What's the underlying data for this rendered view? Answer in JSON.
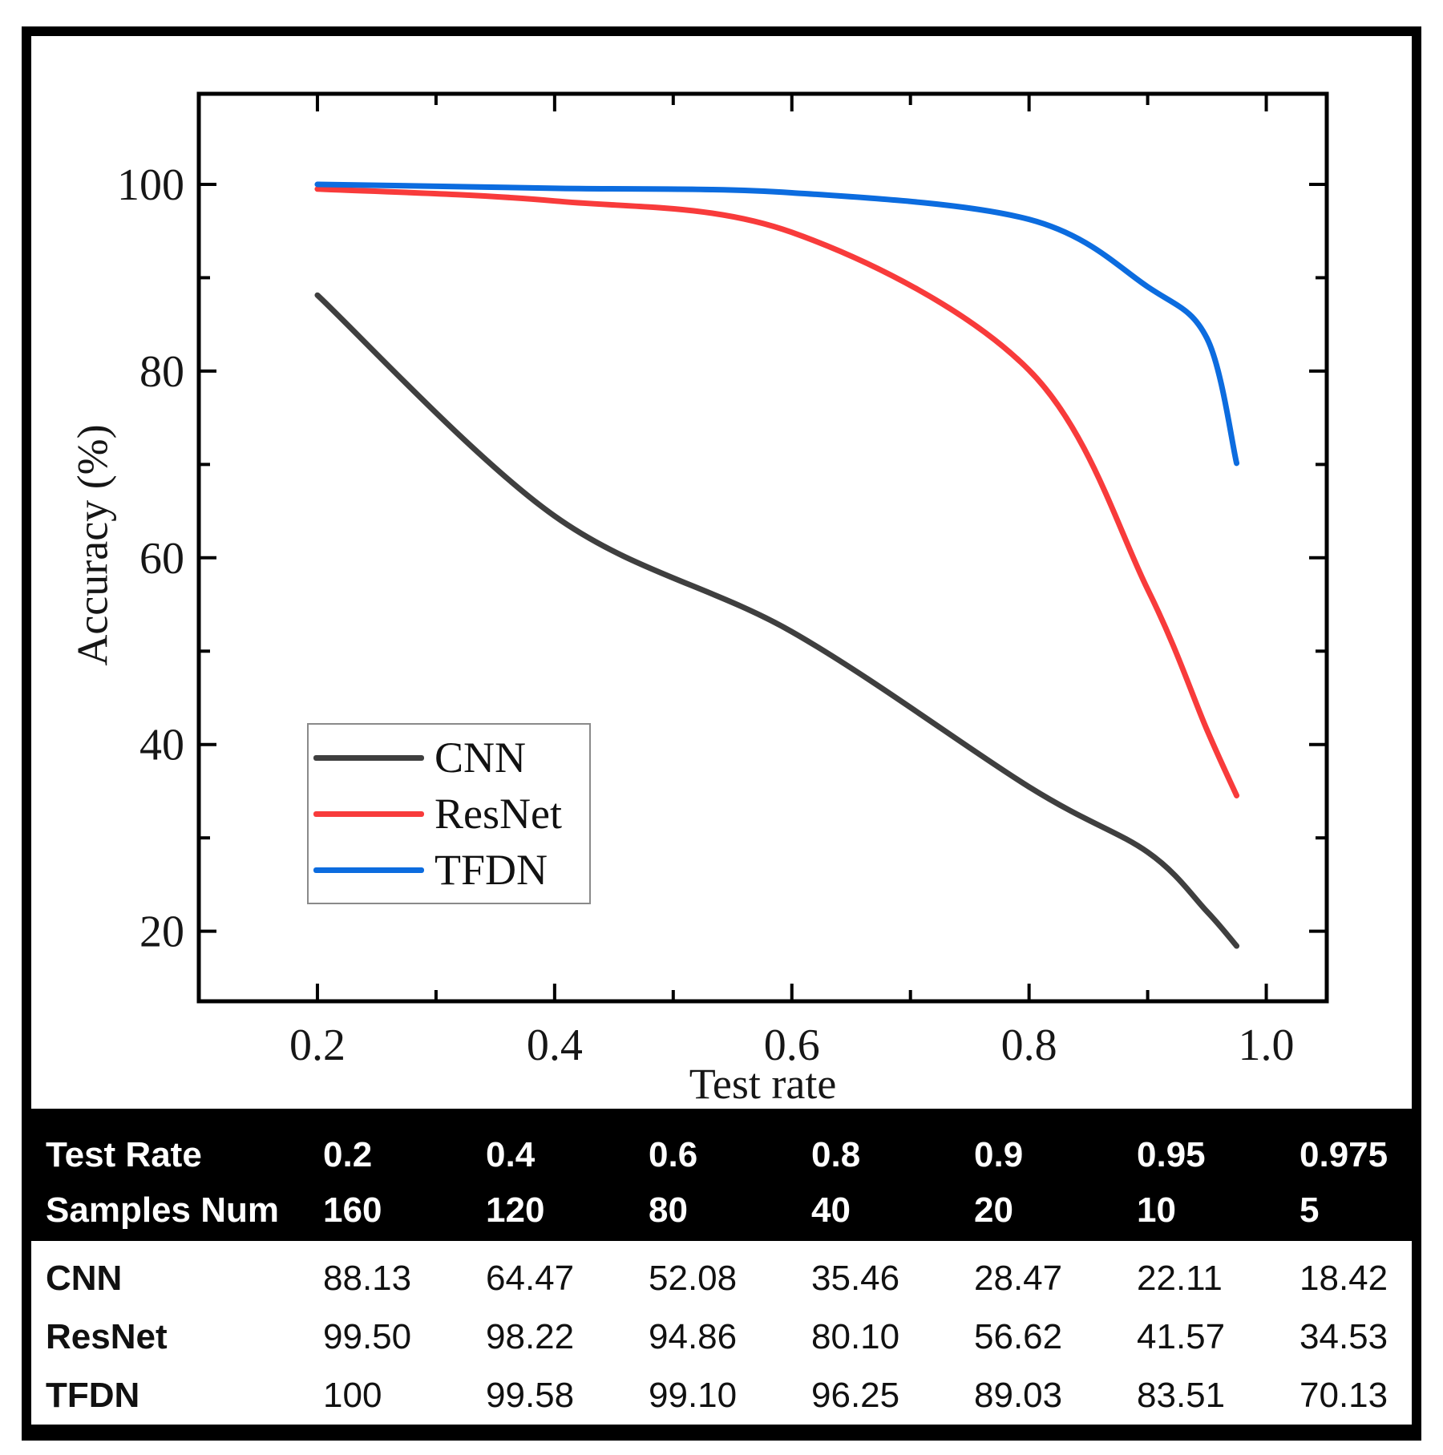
{
  "chart_data": {
    "type": "line",
    "title": "",
    "xlabel": "Test rate",
    "ylabel": "Accuracy (%)",
    "x": [
      0.2,
      0.4,
      0.6,
      0.8,
      0.9,
      0.95,
      0.975
    ],
    "series": [
      {
        "name": "CNN",
        "color": "#3f3f3f",
        "values": [
          88.13,
          64.47,
          52.08,
          35.46,
          28.47,
          22.11,
          18.42
        ]
      },
      {
        "name": "ResNet",
        "color": "#f83b3b",
        "values": [
          99.5,
          98.22,
          94.86,
          80.1,
          56.62,
          41.57,
          34.53
        ]
      },
      {
        "name": "TFDN",
        "color": "#0c6cdf",
        "values": [
          100,
          99.58,
          99.1,
          96.25,
          89.03,
          83.51,
          70.13
        ]
      }
    ],
    "xlim": [
      0.1,
      1.051
    ],
    "ylim": [
      12.5,
      109.7
    ],
    "x_ticks": [
      {
        "v": 0.2,
        "label": "0.2"
      },
      {
        "v": 0.4,
        "label": "0.4"
      },
      {
        "v": 0.6,
        "label": "0.6"
      },
      {
        "v": 0.8,
        "label": "0.8"
      },
      {
        "v": 1.0,
        "label": "1.0"
      }
    ],
    "x_minor_ticks": [
      0.3,
      0.5,
      0.7,
      0.9
    ],
    "y_ticks": [
      {
        "v": 100,
        "label": "100"
      },
      {
        "v": 80,
        "label": "80"
      },
      {
        "v": 60,
        "label": "60"
      },
      {
        "v": 40,
        "label": "40"
      },
      {
        "v": 20,
        "label": "20"
      }
    ],
    "y_minor_ticks": [
      90,
      70,
      50,
      30
    ],
    "legend_position": "lower-left",
    "grid": false,
    "smoothing": "spline"
  },
  "table": {
    "header_rows": [
      {
        "label": "Test Rate",
        "values": [
          "0.2",
          "0.4",
          "0.6",
          "0.8",
          "0.9",
          "0.95",
          "0.975"
        ]
      },
      {
        "label": "Samples Num",
        "values": [
          "160",
          "120",
          "80",
          "40",
          "20",
          "10",
          "5"
        ]
      }
    ],
    "body_rows": [
      {
        "label": "CNN",
        "values": [
          "88.13",
          "64.47",
          "52.08",
          "35.46",
          "28.47",
          "22.11",
          "18.42"
        ]
      },
      {
        "label": "ResNet",
        "values": [
          "99.50",
          "98.22",
          "94.86",
          "80.10",
          "56.62",
          "41.57",
          "34.53"
        ]
      },
      {
        "label": "TFDN",
        "values": [
          "100",
          "99.58",
          "99.10",
          "96.25",
          "89.03",
          "83.51",
          "70.13"
        ]
      }
    ]
  },
  "colors": {
    "frame": "#000000",
    "header_bg": "#000000",
    "header_text": "#ffffff",
    "legend_border": "#8a8a8a"
  }
}
